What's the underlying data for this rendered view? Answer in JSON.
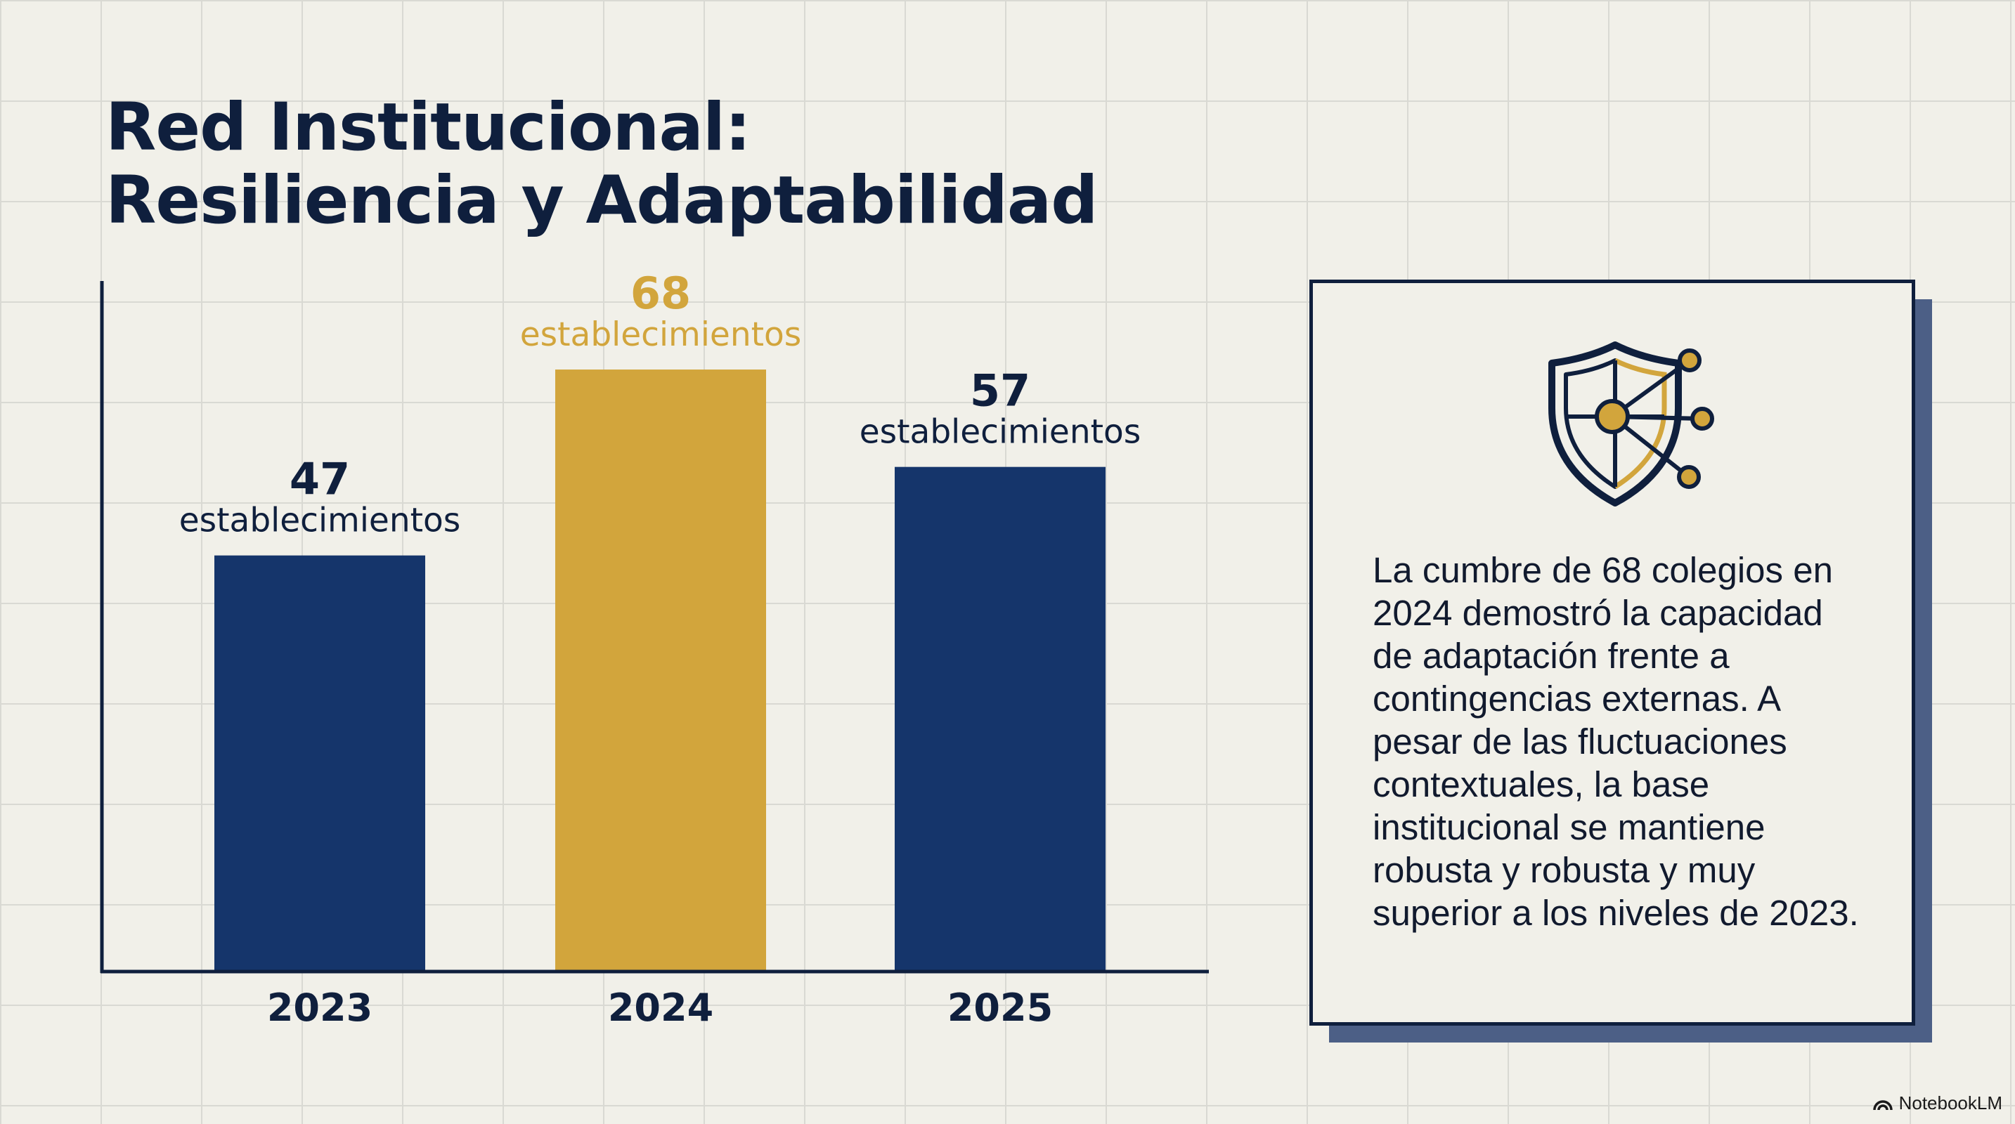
{
  "title": {
    "line1": "Red Institucional:",
    "line2": "Resiliencia y Adaptabilidad"
  },
  "chart_data": {
    "type": "bar",
    "categories": [
      "2023",
      "2024",
      "2025"
    ],
    "values": [
      47,
      68,
      57
    ],
    "unit_label": "establecimientos",
    "highlight_category": "2024",
    "ylim": [
      0,
      78
    ],
    "grid": true,
    "colors": {
      "default": "#15356b",
      "highlight": "#d2a53c",
      "axis": "#0f1f3d"
    }
  },
  "info_panel": {
    "icon": "shield-network-icon",
    "text": "La cumbre de 68 colegios en 2024 demostró la capacidad de adaptación frente a contingencias externas. A pesar de las fluctuaciones contextuales, la base institucional se mantiene robusta y robusta y muy superior a los niveles de 2023."
  },
  "brand": {
    "icon": "notebooklm-icon",
    "label": "NotebookLM"
  },
  "colors": {
    "background": "#f1f0e9",
    "navy": "#0f1f3d",
    "gold": "#d2a53c",
    "shadow": "#4c5f86"
  }
}
